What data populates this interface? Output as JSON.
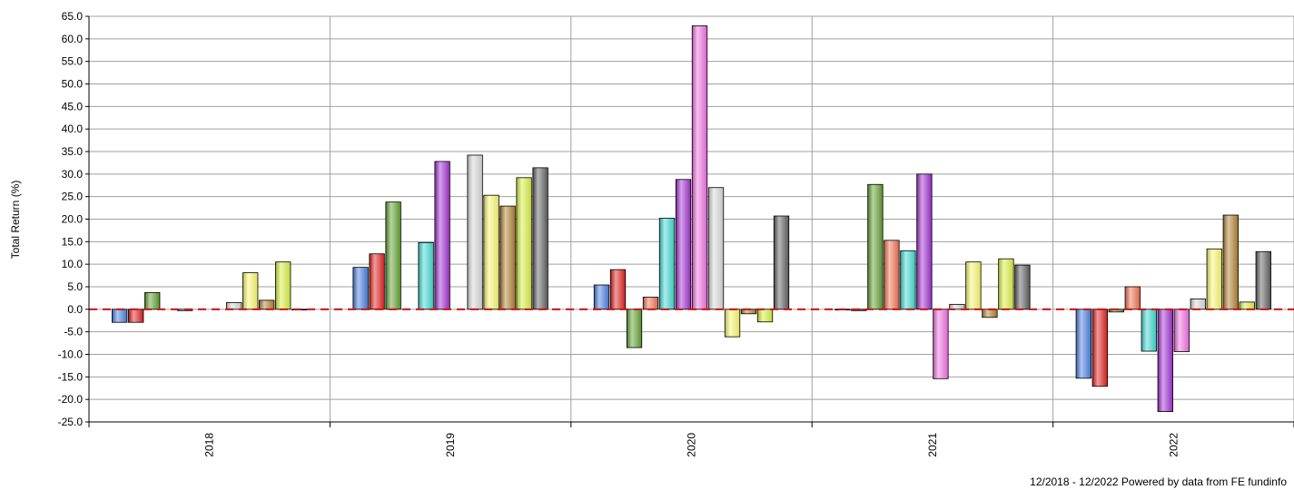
{
  "chart_data": {
    "type": "bar",
    "ylabel": "Total Return (%)",
    "xlabel": "",
    "ylim": [
      -25,
      65
    ],
    "ytick_step": 5,
    "grid": true,
    "zero_line": "dashed-red",
    "categories": [
      "2018",
      "2019",
      "2020",
      "2021",
      "2022"
    ],
    "series": [
      {
        "color": "#4a7ee0",
        "values": [
          -2.9,
          9.3,
          5.4,
          -0.1,
          -15.3
        ]
      },
      {
        "color": "#e02020",
        "values": [
          -2.9,
          12.3,
          8.8,
          -0.3,
          -17.1
        ]
      },
      {
        "color": "#5fa030",
        "values": [
          3.7,
          23.8,
          -8.5,
          27.7,
          -0.6
        ]
      },
      {
        "color": "#f07050",
        "values": [
          null,
          null,
          2.7,
          15.3,
          5.0
        ]
      },
      {
        "color": "#40d8d0",
        "values": [
          -0.3,
          14.8,
          20.2,
          13.0,
          -9.3
        ]
      },
      {
        "color": "#a030d0",
        "values": [
          null,
          32.8,
          28.8,
          30.0,
          -22.7
        ]
      },
      {
        "color": "#f070e0",
        "values": [
          null,
          null,
          62.9,
          -15.4,
          -9.4
        ]
      },
      {
        "color": "#d8d8d8",
        "values": [
          1.5,
          34.2,
          27.0,
          1.1,
          2.3
        ]
      },
      {
        "color": "#f8f870",
        "values": [
          8.1,
          25.3,
          -6.1,
          10.5,
          13.4
        ]
      },
      {
        "color": "#b08030",
        "values": [
          2.0,
          22.9,
          -1.0,
          -1.8,
          20.9
        ]
      },
      {
        "color": "#d8f040",
        "values": [
          10.5,
          29.2,
          -2.8,
          11.2,
          1.6
        ]
      },
      {
        "color": "#606060",
        "values": [
          0.0,
          31.4,
          20.7,
          9.8,
          12.8
        ]
      }
    ]
  },
  "footer": {
    "credit": "12/2018 - 12/2022 Powered by data from FE fundinfo"
  }
}
